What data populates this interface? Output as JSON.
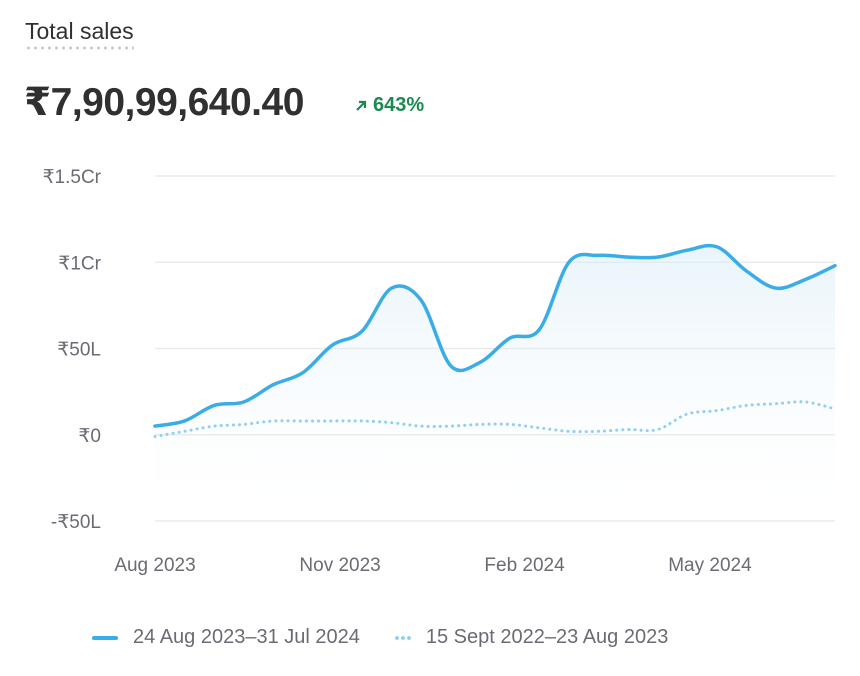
{
  "header": {
    "title": "Total sales",
    "total": "₹7,90,99,640.40",
    "delta": "643%",
    "delta_icon": "arrow-up-right-icon",
    "delta_color": "#1a8a4f"
  },
  "chart_data": {
    "type": "line",
    "title": "Total sales",
    "xlabel": "",
    "ylabel": "",
    "y_unit": "lakh rupees",
    "ylim": [
      -50,
      150
    ],
    "yticks": [
      {
        "value": 150,
        "label": "₹1.5Cr"
      },
      {
        "value": 100,
        "label": "₹1Cr"
      },
      {
        "value": 50,
        "label": "₹50L"
      },
      {
        "value": 0,
        "label": "₹0"
      },
      {
        "value": -50,
        "label": "-₹50L"
      }
    ],
    "xlim": [
      0,
      23
    ],
    "xticks": [
      {
        "value": 0,
        "label": "Aug 2023"
      },
      {
        "value": 6.26,
        "label": "Nov 2023"
      },
      {
        "value": 12.5,
        "label": "Feb 2024"
      },
      {
        "value": 18.77,
        "label": "May 2024"
      }
    ],
    "grid": true,
    "legend_position": "bottom",
    "series": [
      {
        "name": "24 Aug 2023–31 Jul 2024",
        "style": "solid",
        "color": "#3aace6",
        "values": [
          5,
          8,
          17,
          19,
          29,
          36,
          52,
          60,
          85,
          78,
          40,
          42,
          56,
          61,
          100,
          104,
          103,
          103,
          107,
          109,
          95,
          85,
          90,
          98
        ]
      },
      {
        "name": "15 Sept 2022–23 Aug 2023",
        "style": "dotted",
        "color": "#8fd0f0",
        "values": [
          -1,
          2,
          5,
          6,
          8,
          8,
          8,
          8,
          7,
          5,
          5,
          6,
          6,
          4,
          2,
          2,
          3,
          3,
          12,
          14,
          17,
          18,
          19,
          15
        ]
      }
    ]
  }
}
